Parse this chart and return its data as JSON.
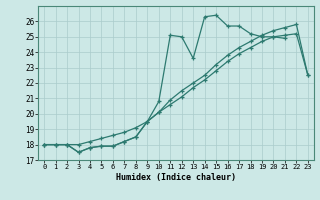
{
  "xlabel": "Humidex (Indice chaleur)",
  "bg_color": "#cce8e6",
  "grid_color": "#aacccc",
  "line_color": "#2d7a70",
  "xlim": [
    -0.5,
    23.5
  ],
  "ylim": [
    17.0,
    27.0
  ],
  "yticks": [
    17,
    18,
    19,
    20,
    21,
    22,
    23,
    24,
    25,
    26
  ],
  "xticks": [
    0,
    1,
    2,
    3,
    4,
    5,
    6,
    7,
    8,
    9,
    10,
    11,
    12,
    13,
    14,
    15,
    16,
    17,
    18,
    19,
    20,
    21,
    22,
    23
  ],
  "series1_x": [
    0,
    1,
    2,
    3,
    4,
    5,
    6,
    7,
    8,
    9,
    10,
    11,
    12,
    13,
    14,
    15,
    16,
    17,
    18,
    19,
    20,
    21
  ],
  "series1_y": [
    18.0,
    18.0,
    18.0,
    17.5,
    17.8,
    17.9,
    17.9,
    18.2,
    18.5,
    19.5,
    20.8,
    25.1,
    25.0,
    23.6,
    26.3,
    26.4,
    25.7,
    25.7,
    25.2,
    25.0,
    25.0,
    24.9
  ],
  "series2_x": [
    0,
    1,
    2,
    3,
    4,
    5,
    6,
    7,
    8,
    9,
    10,
    11,
    12,
    13,
    14,
    15,
    16,
    17,
    18,
    19,
    20,
    21,
    22,
    23
  ],
  "series2_y": [
    18.0,
    18.0,
    18.0,
    18.0,
    18.2,
    18.4,
    18.6,
    18.8,
    19.1,
    19.5,
    20.1,
    20.6,
    21.1,
    21.7,
    22.2,
    22.8,
    23.4,
    23.9,
    24.3,
    24.7,
    25.0,
    25.1,
    25.2,
    22.5
  ],
  "series3_x": [
    0,
    1,
    2,
    3,
    4,
    5,
    6,
    7,
    8,
    9,
    10,
    11,
    12,
    13,
    14,
    15,
    16,
    17,
    18,
    19,
    20,
    21,
    22,
    23
  ],
  "series3_y": [
    18.0,
    18.0,
    18.0,
    17.5,
    17.8,
    17.9,
    17.9,
    18.2,
    18.5,
    19.5,
    20.1,
    20.9,
    21.5,
    22.0,
    22.5,
    23.2,
    23.8,
    24.3,
    24.7,
    25.1,
    25.4,
    25.6,
    25.8,
    22.5
  ]
}
